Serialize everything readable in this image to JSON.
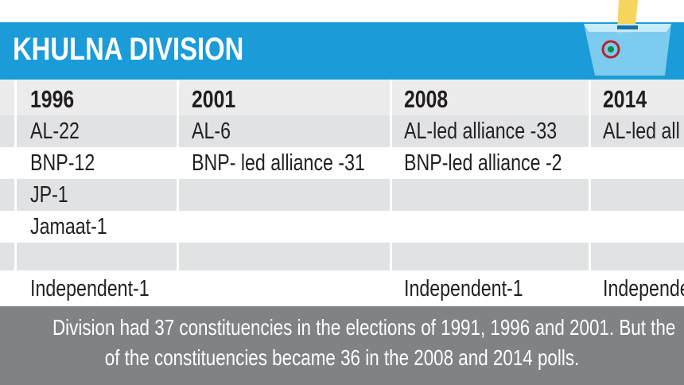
{
  "header": {
    "title": "KHULNA DIVISION"
  },
  "table": {
    "columns": [
      "1996",
      "2001",
      "2008",
      "2014"
    ],
    "rows": [
      [
        "AL-22",
        "AL-6",
        "AL-led alliance -33",
        "AL-led all"
      ],
      [
        "BNP-12",
        "BNP- led alliance -31",
        "BNP-led alliance -2",
        null
      ],
      [
        "JP-1",
        null,
        null,
        null
      ],
      [
        "Jamaat-1",
        null,
        null,
        null
      ],
      [
        null,
        null,
        null,
        null
      ],
      [
        "Independent-1",
        null,
        "Independent-1",
        "Independen"
      ]
    ]
  },
  "footer": {
    "lines": [
      "Division had 37 constituencies in the elections of 1991, 1996 and 2001. But the",
      "of the constituencies became 36 in the 2008 and 2014 polls."
    ]
  }
}
